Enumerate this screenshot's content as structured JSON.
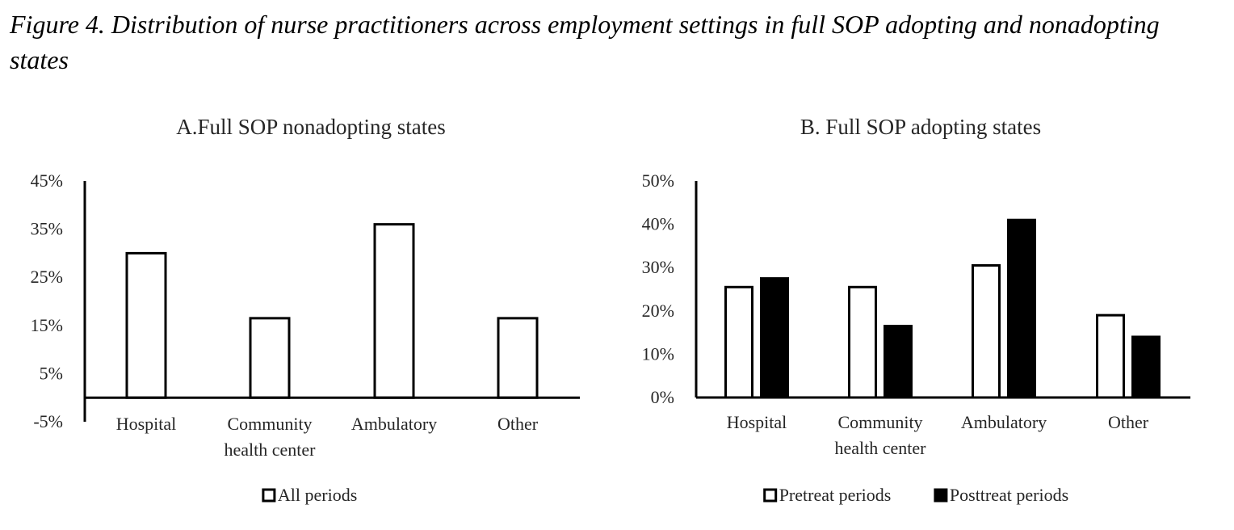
{
  "figure": {
    "title": "Figure 4. Distribution of nurse practitioners across employment settings in full SOP adopting and nonadopting states"
  },
  "colors": {
    "pretreat": "#ffffff",
    "posttreat": "#000000",
    "stroke": "#000000"
  },
  "chart_data": [
    {
      "type": "bar",
      "title": "A.Full SOP nonadopting states",
      "categories": [
        "Hospital",
        "Community health center",
        "Ambulatory",
        "Other"
      ],
      "category_lines": [
        [
          "Hospital"
        ],
        [
          "Community",
          "health center"
        ],
        [
          "Ambulatory"
        ],
        [
          "Other"
        ]
      ],
      "series": [
        {
          "name": "All periods",
          "fill": "#ffffff",
          "values": [
            30,
            16.5,
            36,
            16.5
          ]
        }
      ],
      "yticks": [
        "45%",
        "35%",
        "25%",
        "15%",
        "5%",
        "-5%"
      ],
      "ylim": [
        -5,
        45
      ],
      "xlabel": "",
      "ylabel": "",
      "grid": false,
      "legend": "bottom-center"
    },
    {
      "type": "bar",
      "title": "B. Full SOP adopting states",
      "categories": [
        "Hospital",
        "Community health center",
        "Ambulatory",
        "Other"
      ],
      "category_lines": [
        [
          "Hospital"
        ],
        [
          "Community",
          "health center"
        ],
        [
          "Ambulatory"
        ],
        [
          "Other"
        ]
      ],
      "series": [
        {
          "name": "Pretreat periods",
          "fill": "#ffffff",
          "values": [
            25.5,
            25.5,
            30.5,
            19
          ]
        },
        {
          "name": "Posttreat periods",
          "fill": "#000000",
          "values": [
            27.5,
            16.5,
            41,
            14
          ]
        }
      ],
      "yticks": [
        "50%",
        "40%",
        "30%",
        "20%",
        "10%",
        "0%"
      ],
      "ylim": [
        0,
        50
      ],
      "xlabel": "",
      "ylabel": "",
      "grid": false,
      "legend": "bottom-center"
    }
  ]
}
